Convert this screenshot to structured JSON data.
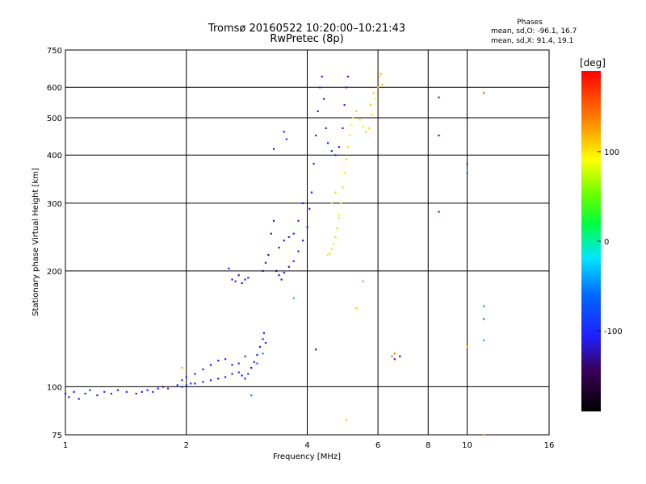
{
  "header": {
    "title": "Tromsø 20160522 10:20:00–10:21:43",
    "subtitle": "RwPretec (8p)"
  },
  "phase_info": {
    "heading": "Phases",
    "line_o": "mean, sd,O: -96.1, 16.7",
    "line_x": "mean, sd,X:  91.4, 19.1"
  },
  "colorbar": {
    "label": "[deg]",
    "ticks": [
      {
        "v": 100,
        "label": "100"
      },
      {
        "v": 0,
        "label": "0"
      },
      {
        "v": -100,
        "label": "-100"
      }
    ],
    "range": [
      -190,
      190
    ]
  },
  "chart_data": {
    "type": "scatter",
    "xlabel": "Frequency [MHz]",
    "ylabel": "Stationary phase Virtual Height [km]",
    "xscale": "log",
    "yscale": "log",
    "xlim": [
      1,
      16
    ],
    "ylim": [
      75,
      750
    ],
    "xticks": [
      {
        "v": 1,
        "label": "1"
      },
      {
        "v": 2,
        "label": "2"
      },
      {
        "v": 4,
        "label": "4"
      },
      {
        "v": 6,
        "label": "6"
      },
      {
        "v": 8,
        "label": "8"
      },
      {
        "v": 10,
        "label": "10"
      },
      {
        "v": 16,
        "label": "16"
      }
    ],
    "yticks": [
      {
        "v": 75,
        "label": "75"
      },
      {
        "v": 100,
        "label": "100"
      },
      {
        "v": 200,
        "label": "200"
      },
      {
        "v": 300,
        "label": "300"
      },
      {
        "v": 400,
        "label": "400"
      },
      {
        "v": 500,
        "label": "500"
      },
      {
        "v": 600,
        "label": "600"
      },
      {
        "v": 750,
        "label": "750"
      }
    ],
    "grid": true,
    "series": [
      {
        "points": [
          [
            1.0,
            96,
            -105
          ],
          [
            1.02,
            94,
            -110
          ],
          [
            1.05,
            97,
            -105
          ],
          [
            1.08,
            93,
            -110
          ],
          [
            1.12,
            96,
            -100
          ],
          [
            1.15,
            98,
            -105
          ],
          [
            1.2,
            95,
            -110
          ],
          [
            1.25,
            97,
            -100
          ],
          [
            1.3,
            96,
            -105
          ],
          [
            1.35,
            98,
            -110
          ],
          [
            1.42,
            97,
            -100
          ],
          [
            1.5,
            96,
            -105
          ],
          [
            1.55,
            97,
            -110
          ],
          [
            1.6,
            98,
            -100
          ],
          [
            1.65,
            97,
            -105
          ],
          [
            1.7,
            99,
            -110
          ],
          [
            1.75,
            100,
            -130
          ],
          [
            1.8,
            99,
            -100
          ],
          [
            1.9,
            101,
            -105
          ],
          [
            1.95,
            100,
            -110
          ],
          [
            2.0,
            101,
            -100
          ],
          [
            2.05,
            102,
            -105
          ],
          [
            2.1,
            102,
            -110
          ],
          [
            2.2,
            103,
            -100
          ],
          [
            2.3,
            104,
            -105
          ],
          [
            2.4,
            105,
            -110
          ],
          [
            2.5,
            106,
            -100
          ],
          [
            2.6,
            108,
            -105
          ],
          [
            2.7,
            109,
            -110
          ],
          [
            2.75,
            107,
            -100
          ],
          [
            2.8,
            105,
            -105
          ],
          [
            2.85,
            108,
            -90
          ],
          [
            2.9,
            112,
            -110
          ],
          [
            2.95,
            116,
            -105
          ],
          [
            3.0,
            121,
            -100
          ],
          [
            3.05,
            127,
            -110
          ],
          [
            3.1,
            133,
            -105
          ],
          [
            3.12,
            138,
            -100
          ],
          [
            3.15,
            130,
            -110
          ],
          [
            1.95,
            104,
            -105
          ],
          [
            2.0,
            106,
            -110
          ],
          [
            2.1,
            108,
            -100
          ],
          [
            2.2,
            111,
            -105
          ],
          [
            2.3,
            114,
            -110
          ],
          [
            2.4,
            117,
            -105
          ],
          [
            2.5,
            118,
            -100
          ],
          [
            2.6,
            114,
            -110
          ],
          [
            2.7,
            115,
            -90
          ],
          [
            2.8,
            120,
            -80
          ],
          [
            2.55,
            203,
            -110
          ],
          [
            2.6,
            190,
            -115
          ],
          [
            2.65,
            188,
            -105
          ],
          [
            2.7,
            195,
            -120
          ],
          [
            2.75,
            186,
            -110
          ],
          [
            2.8,
            190,
            -100
          ],
          [
            2.85,
            192,
            -115
          ],
          [
            3.1,
            200,
            -130
          ],
          [
            3.15,
            210,
            -120
          ],
          [
            3.2,
            220,
            -125
          ],
          [
            3.25,
            250,
            -110
          ],
          [
            3.3,
            270,
            -120
          ],
          [
            3.35,
            200,
            -140
          ],
          [
            3.4,
            195,
            -120
          ],
          [
            3.45,
            190,
            -110
          ],
          [
            3.5,
            198,
            -105
          ],
          [
            3.6,
            205,
            -110
          ],
          [
            3.7,
            212,
            -100
          ],
          [
            3.8,
            225,
            -105
          ],
          [
            3.9,
            240,
            -110
          ],
          [
            4.0,
            260,
            -100
          ],
          [
            4.05,
            290,
            -105
          ],
          [
            4.1,
            320,
            -110
          ],
          [
            4.15,
            380,
            -100
          ],
          [
            4.2,
            450,
            -105
          ],
          [
            4.25,
            520,
            -110
          ],
          [
            4.3,
            600,
            -100
          ],
          [
            4.35,
            640,
            -105
          ],
          [
            4.4,
            560,
            -110
          ],
          [
            4.45,
            470,
            -100
          ],
          [
            4.5,
            430,
            -105
          ],
          [
            4.6,
            410,
            -110
          ],
          [
            4.7,
            400,
            -100
          ],
          [
            4.8,
            420,
            -105
          ],
          [
            4.9,
            470,
            -110
          ],
          [
            4.95,
            540,
            -100
          ],
          [
            5.0,
            600,
            -105
          ],
          [
            5.05,
            640,
            -110
          ],
          [
            3.4,
            230,
            -120
          ],
          [
            3.5,
            240,
            -110
          ],
          [
            3.6,
            245,
            -105
          ],
          [
            3.7,
            250,
            -100
          ],
          [
            3.8,
            270,
            -110
          ],
          [
            3.9,
            300,
            -105
          ],
          [
            3.3,
            415,
            -110
          ],
          [
            3.5,
            460,
            -105
          ],
          [
            3.55,
            440,
            -100
          ],
          [
            8.5,
            565,
            -105
          ],
          [
            8.5,
            450,
            -110
          ],
          [
            8.5,
            285,
            -100
          ],
          [
            10.0,
            500,
            -110
          ],
          [
            10.0,
            380,
            -80
          ],
          [
            10.0,
            360,
            -60
          ],
          [
            4.2,
            125,
            -120
          ],
          [
            6.6,
            118,
            -100
          ],
          [
            6.8,
            120,
            -110
          ]
        ]
      },
      {
        "points": [
          [
            4.5,
            220,
            100
          ],
          [
            4.55,
            222,
            110
          ],
          [
            4.6,
            228,
            105
          ],
          [
            4.65,
            235,
            100
          ],
          [
            4.7,
            245,
            110
          ],
          [
            4.75,
            258,
            105
          ],
          [
            4.8,
            275,
            100
          ],
          [
            4.85,
            300,
            95
          ],
          [
            4.9,
            330,
            105
          ],
          [
            4.95,
            360,
            100
          ],
          [
            5.0,
            390,
            110
          ],
          [
            5.05,
            420,
            105
          ],
          [
            5.1,
            450,
            100
          ],
          [
            5.15,
            480,
            95
          ],
          [
            5.2,
            500,
            100
          ],
          [
            5.3,
            520,
            110
          ],
          [
            5.4,
            495,
            105
          ],
          [
            5.5,
            475,
            100
          ],
          [
            5.6,
            460,
            110
          ],
          [
            5.7,
            470,
            105
          ],
          [
            5.8,
            510,
            100
          ],
          [
            5.9,
            560,
            95
          ],
          [
            6.0,
            600,
            110
          ],
          [
            6.05,
            640,
            105
          ],
          [
            6.1,
            650,
            120
          ],
          [
            6.15,
            610,
            115
          ],
          [
            5.75,
            540,
            110
          ],
          [
            5.85,
            580,
            105
          ],
          [
            4.6,
            300,
            100
          ],
          [
            4.7,
            320,
            110
          ],
          [
            4.8,
            280,
            95
          ],
          [
            1.95,
            112,
            120
          ],
          [
            5.3,
            160,
            110
          ],
          [
            5.0,
            82,
            110
          ],
          [
            6.6,
            122,
            140
          ],
          [
            6.5,
            120,
            150
          ],
          [
            5.5,
            188,
            130
          ],
          [
            11.0,
            580,
            150
          ],
          [
            11.0,
            75,
            120
          ],
          [
            10.0,
            127,
            120
          ]
        ]
      },
      {
        "points": [
          [
            3.7,
            170,
            -40
          ],
          [
            2.9,
            95,
            -50
          ],
          [
            11.0,
            162,
            -40
          ],
          [
            11.0,
            150,
            -50
          ],
          [
            11.0,
            132,
            -35
          ],
          [
            3.0,
            115,
            -60
          ],
          [
            3.1,
            122,
            -50
          ]
        ]
      }
    ]
  }
}
